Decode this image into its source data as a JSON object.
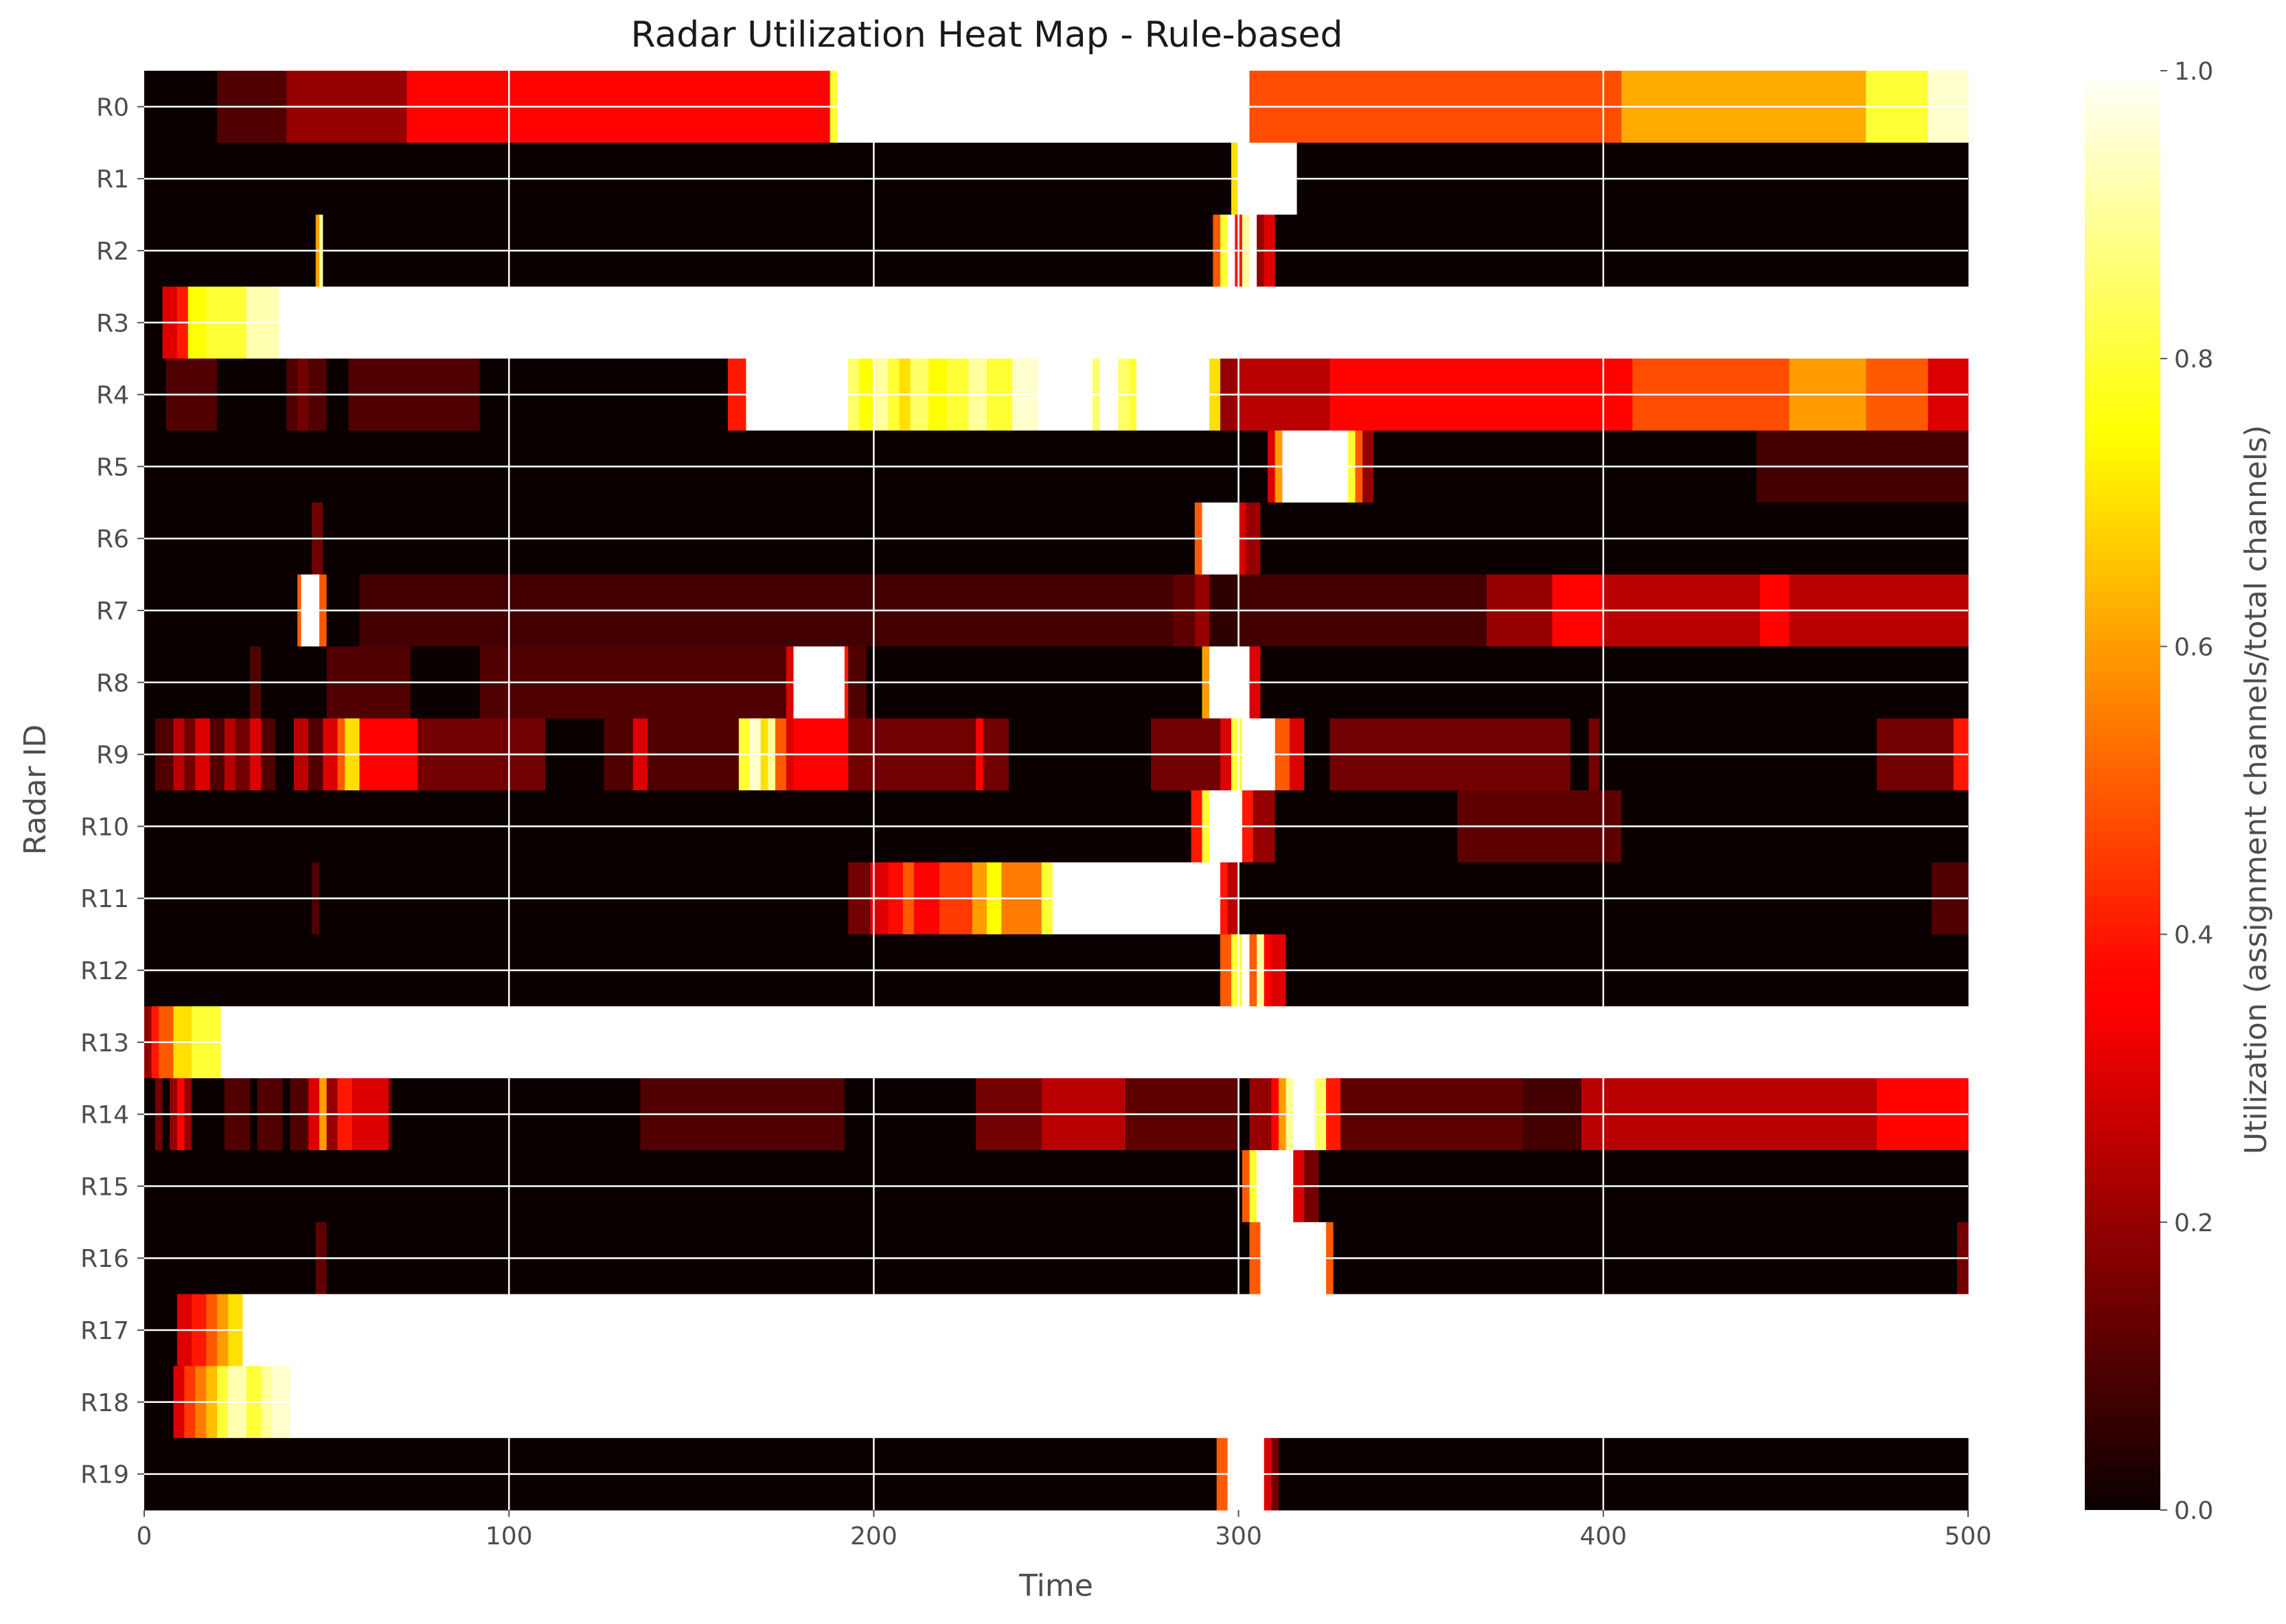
{
  "chart_data": {
    "type": "heatmap",
    "title": "Radar Utilization Heat Map - Rule-based",
    "xlabel": "Time",
    "ylabel": "Radar ID",
    "xlim": [
      0,
      500
    ],
    "x_ticks": [
      "0",
      "100",
      "200",
      "300",
      "400",
      "500"
    ],
    "rows": [
      "R0",
      "R1",
      "R2",
      "R3",
      "R4",
      "R5",
      "R6",
      "R7",
      "R8",
      "R9",
      "R10",
      "R11",
      "R12",
      "R13",
      "R14",
      "R15",
      "R16",
      "R17",
      "R18",
      "R19"
    ],
    "colormap": "hot",
    "colorbar": {
      "label": "Utilization (assignment channels/total channels)",
      "range": [
        0.0,
        1.0
      ],
      "ticks": [
        "0.0",
        "0.2",
        "0.4",
        "0.6",
        "0.8",
        "1.0"
      ]
    },
    "grid": true,
    "segments": [
      [
        [
          0,
          20,
          0.0
        ],
        [
          20,
          39,
          0.1
        ],
        [
          39,
          72,
          0.2
        ],
        [
          72,
          188,
          0.37
        ],
        [
          188,
          190,
          0.8
        ],
        [
          190,
          303,
          1.0
        ],
        [
          303,
          405,
          0.48
        ],
        [
          405,
          472,
          0.62
        ],
        [
          472,
          489,
          0.8
        ],
        [
          489,
          500,
          0.95
        ]
      ],
      [
        [
          0,
          298,
          0.0
        ],
        [
          298,
          300,
          0.7
        ],
        [
          300,
          316,
          1.0
        ],
        [
          316,
          500,
          0.0
        ]
      ],
      [
        [
          0,
          47,
          0.0
        ],
        [
          47,
          48,
          0.6
        ],
        [
          48,
          49,
          0.9
        ],
        [
          49,
          293,
          0.0
        ],
        [
          293,
          295,
          0.5
        ],
        [
          295,
          297,
          0.8
        ],
        [
          297,
          299,
          1.0
        ],
        [
          299,
          301,
          0.4
        ],
        [
          301,
          303,
          0.9
        ],
        [
          303,
          305,
          1.0
        ],
        [
          305,
          307,
          0.2
        ],
        [
          307,
          310,
          0.3
        ],
        [
          310,
          500,
          0.0
        ]
      ],
      [
        [
          0,
          5,
          0.0
        ],
        [
          5,
          9,
          0.3
        ],
        [
          9,
          12,
          0.4
        ],
        [
          12,
          17,
          0.75
        ],
        [
          17,
          28,
          0.8
        ],
        [
          28,
          37,
          0.92
        ],
        [
          37,
          500,
          1.0
        ]
      ],
      [
        [
          0,
          6,
          0.0
        ],
        [
          6,
          20,
          0.1
        ],
        [
          20,
          39,
          0.0
        ],
        [
          39,
          42,
          0.1
        ],
        [
          42,
          45,
          0.15
        ],
        [
          45,
          50,
          0.1
        ],
        [
          50,
          56,
          0.0
        ],
        [
          56,
          92,
          0.1
        ],
        [
          92,
          160,
          0.0
        ],
        [
          160,
          165,
          0.4
        ],
        [
          165,
          193,
          1.0
        ],
        [
          193,
          196,
          0.85
        ],
        [
          196,
          200,
          0.75
        ],
        [
          200,
          204,
          0.9
        ],
        [
          204,
          207,
          0.8
        ],
        [
          207,
          210,
          0.7
        ],
        [
          210,
          215,
          0.85
        ],
        [
          215,
          220,
          0.75
        ],
        [
          220,
          226,
          0.8
        ],
        [
          226,
          231,
          0.9
        ],
        [
          231,
          238,
          0.8
        ],
        [
          238,
          245,
          0.95
        ],
        [
          245,
          260,
          1.0
        ],
        [
          260,
          262,
          0.85
        ],
        [
          262,
          267,
          1.0
        ],
        [
          267,
          270,
          0.85
        ],
        [
          270,
          272,
          0.8
        ],
        [
          272,
          292,
          1.0
        ],
        [
          292,
          295,
          0.7
        ],
        [
          295,
          300,
          0.2
        ],
        [
          300,
          325,
          0.25
        ],
        [
          325,
          408,
          0.37
        ],
        [
          408,
          451,
          0.48
        ],
        [
          451,
          472,
          0.6
        ],
        [
          472,
          489,
          0.5
        ],
        [
          489,
          500,
          0.3
        ]
      ],
      [
        [
          0,
          308,
          0.0
        ],
        [
          308,
          310,
          0.3
        ],
        [
          310,
          312,
          0.6
        ],
        [
          312,
          330,
          1.0
        ],
        [
          330,
          332,
          0.8
        ],
        [
          332,
          334,
          0.5
        ],
        [
          334,
          337,
          0.2
        ],
        [
          337,
          442,
          0.0
        ],
        [
          442,
          500,
          0.08
        ]
      ],
      [
        [
          0,
          46,
          0.0
        ],
        [
          46,
          49,
          0.15
        ],
        [
          49,
          288,
          0.0
        ],
        [
          288,
          290,
          0.5
        ],
        [
          290,
          300,
          1.0
        ],
        [
          300,
          302,
          0.3
        ],
        [
          302,
          306,
          0.2
        ],
        [
          306,
          500,
          0.0
        ]
      ],
      [
        [
          0,
          42,
          0.0
        ],
        [
          42,
          43,
          0.5
        ],
        [
          43,
          48,
          1.0
        ],
        [
          48,
          50,
          0.5
        ],
        [
          50,
          59,
          0.0
        ],
        [
          59,
          282,
          0.08
        ],
        [
          282,
          288,
          0.12
        ],
        [
          288,
          292,
          0.2
        ],
        [
          292,
          300,
          0.05
        ],
        [
          300,
          368,
          0.08
        ],
        [
          368,
          386,
          0.2
        ],
        [
          386,
          400,
          0.37
        ],
        [
          400,
          443,
          0.25
        ],
        [
          443,
          451,
          0.37
        ],
        [
          451,
          500,
          0.25
        ]
      ],
      [
        [
          0,
          29,
          0.0
        ],
        [
          29,
          32,
          0.1
        ],
        [
          32,
          50,
          0.0
        ],
        [
          50,
          73,
          0.1
        ],
        [
          73,
          92,
          0.0
        ],
        [
          92,
          176,
          0.1
        ],
        [
          176,
          178,
          0.3
        ],
        [
          178,
          192,
          1.0
        ],
        [
          192,
          193,
          0.4
        ],
        [
          193,
          198,
          0.1
        ],
        [
          198,
          290,
          0.0
        ],
        [
          290,
          292,
          0.6
        ],
        [
          292,
          303,
          1.0
        ],
        [
          303,
          306,
          0.3
        ],
        [
          306,
          500,
          0.0
        ]
      ],
      [
        [
          0,
          3,
          0.0
        ],
        [
          3,
          8,
          0.1
        ],
        [
          8,
          11,
          0.25
        ],
        [
          11,
          14,
          0.15
        ],
        [
          14,
          18,
          0.3
        ],
        [
          18,
          22,
          0.1
        ],
        [
          22,
          25,
          0.25
        ],
        [
          25,
          29,
          0.15
        ],
        [
          29,
          32,
          0.3
        ],
        [
          32,
          36,
          0.1
        ],
        [
          36,
          41,
          0.0
        ],
        [
          41,
          45,
          0.25
        ],
        [
          45,
          49,
          0.1
        ],
        [
          49,
          53,
          0.3
        ],
        [
          53,
          55,
          0.5
        ],
        [
          55,
          59,
          0.7
        ],
        [
          59,
          75,
          0.35
        ],
        [
          75,
          110,
          0.15
        ],
        [
          110,
          126,
          0.0
        ],
        [
          126,
          134,
          0.1
        ],
        [
          134,
          138,
          0.3
        ],
        [
          138,
          163,
          0.1
        ],
        [
          163,
          166,
          0.8
        ],
        [
          166,
          169,
          0.95
        ],
        [
          169,
          171,
          0.7
        ],
        [
          171,
          173,
          0.9
        ],
        [
          173,
          176,
          0.5
        ],
        [
          176,
          178,
          0.3
        ],
        [
          178,
          193,
          0.35
        ],
        [
          193,
          228,
          0.15
        ],
        [
          228,
          230,
          0.35
        ],
        [
          230,
          237,
          0.15
        ],
        [
          237,
          276,
          0.0
        ],
        [
          276,
          295,
          0.15
        ],
        [
          295,
          298,
          0.3
        ],
        [
          298,
          301,
          0.8
        ],
        [
          301,
          310,
          1.0
        ],
        [
          310,
          314,
          0.5
        ],
        [
          314,
          318,
          0.3
        ],
        [
          318,
          325,
          0.0
        ],
        [
          325,
          391,
          0.15
        ],
        [
          391,
          396,
          0.0
        ],
        [
          396,
          399,
          0.15
        ],
        [
          399,
          475,
          0.0
        ],
        [
          475,
          496,
          0.15
        ],
        [
          496,
          500,
          0.4
        ]
      ],
      [
        [
          0,
          287,
          0.0
        ],
        [
          287,
          290,
          0.4
        ],
        [
          290,
          292,
          0.8
        ],
        [
          292,
          301,
          1.0
        ],
        [
          301,
          304,
          0.4
        ],
        [
          304,
          310,
          0.2
        ],
        [
          310,
          360,
          0.0
        ],
        [
          360,
          405,
          0.12
        ],
        [
          405,
          500,
          0.0
        ]
      ],
      [
        [
          0,
          46,
          0.0
        ],
        [
          46,
          48,
          0.1
        ],
        [
          48,
          193,
          0.0
        ],
        [
          193,
          199,
          0.15
        ],
        [
          199,
          204,
          0.3
        ],
        [
          204,
          208,
          0.38
        ],
        [
          208,
          211,
          0.5
        ],
        [
          211,
          218,
          0.37
        ],
        [
          218,
          227,
          0.45
        ],
        [
          227,
          231,
          0.6
        ],
        [
          231,
          235,
          0.75
        ],
        [
          235,
          246,
          0.55
        ],
        [
          246,
          249,
          0.8
        ],
        [
          249,
          295,
          1.0
        ],
        [
          295,
          297,
          0.4
        ],
        [
          297,
          300,
          0.25
        ],
        [
          300,
          490,
          0.0
        ],
        [
          490,
          500,
          0.1
        ]
      ],
      [
        [
          0,
          295,
          0.0
        ],
        [
          295,
          298,
          0.5
        ],
        [
          298,
          301,
          0.8
        ],
        [
          301,
          303,
          1.0
        ],
        [
          303,
          305,
          0.5
        ],
        [
          305,
          307,
          0.9
        ],
        [
          307,
          309,
          0.35
        ],
        [
          309,
          313,
          0.3
        ],
        [
          313,
          500,
          0.0
        ]
      ],
      [
        [
          0,
          2,
          0.2
        ],
        [
          2,
          4,
          0.4
        ],
        [
          4,
          8,
          0.5
        ],
        [
          8,
          13,
          0.7
        ],
        [
          13,
          21,
          0.8
        ],
        [
          21,
          500,
          1.0
        ]
      ],
      [
        [
          0,
          3,
          0.0
        ],
        [
          3,
          5,
          0.15
        ],
        [
          5,
          7,
          0.0
        ],
        [
          7,
          9,
          0.2
        ],
        [
          9,
          11,
          0.35
        ],
        [
          11,
          13,
          0.2
        ],
        [
          13,
          22,
          0.0
        ],
        [
          22,
          29,
          0.1
        ],
        [
          29,
          31,
          0.0
        ],
        [
          31,
          38,
          0.1
        ],
        [
          38,
          40,
          0.0
        ],
        [
          40,
          45,
          0.1
        ],
        [
          45,
          48,
          0.3
        ],
        [
          48,
          50,
          0.6
        ],
        [
          50,
          53,
          0.2
        ],
        [
          53,
          57,
          0.4
        ],
        [
          57,
          67,
          0.3
        ],
        [
          67,
          68,
          0.1
        ],
        [
          68,
          136,
          0.0
        ],
        [
          136,
          192,
          0.1
        ],
        [
          192,
          228,
          0.0
        ],
        [
          228,
          246,
          0.15
        ],
        [
          246,
          269,
          0.25
        ],
        [
          269,
          300,
          0.12
        ],
        [
          300,
          303,
          0.0
        ],
        [
          303,
          309,
          0.2
        ],
        [
          309,
          311,
          0.35
        ],
        [
          311,
          313,
          0.6
        ],
        [
          313,
          315,
          0.9
        ],
        [
          315,
          321,
          1.0
        ],
        [
          321,
          324,
          0.85
        ],
        [
          324,
          328,
          0.4
        ],
        [
          328,
          378,
          0.12
        ],
        [
          378,
          394,
          0.08
        ],
        [
          394,
          475,
          0.25
        ],
        [
          475,
          500,
          0.37
        ]
      ],
      [
        [
          0,
          301,
          0.0
        ],
        [
          301,
          303,
          0.5
        ],
        [
          303,
          305,
          0.8
        ],
        [
          305,
          315,
          1.0
        ],
        [
          315,
          318,
          0.3
        ],
        [
          318,
          322,
          0.15
        ],
        [
          322,
          500,
          0.0
        ]
      ],
      [
        [
          0,
          47,
          0.0
        ],
        [
          47,
          50,
          0.12
        ],
        [
          50,
          303,
          0.0
        ],
        [
          303,
          306,
          0.5
        ],
        [
          306,
          324,
          1.0
        ],
        [
          324,
          326,
          0.5
        ],
        [
          326,
          497,
          0.0
        ],
        [
          497,
          500,
          0.15
        ]
      ],
      [
        [
          0,
          9,
          0.0
        ],
        [
          9,
          13,
          0.3
        ],
        [
          13,
          17,
          0.4
        ],
        [
          17,
          20,
          0.5
        ],
        [
          20,
          23,
          0.6
        ],
        [
          23,
          27,
          0.7
        ],
        [
          27,
          500,
          1.0
        ]
      ],
      [
        [
          0,
          8,
          0.0
        ],
        [
          8,
          11,
          0.3
        ],
        [
          11,
          14,
          0.45
        ],
        [
          14,
          17,
          0.55
        ],
        [
          17,
          20,
          0.65
        ],
        [
          20,
          23,
          0.8
        ],
        [
          23,
          28,
          0.92
        ],
        [
          28,
          32,
          0.8
        ],
        [
          32,
          35,
          0.9
        ],
        [
          35,
          40,
          0.95
        ],
        [
          40,
          500,
          1.0
        ]
      ],
      [
        [
          0,
          294,
          0.0
        ],
        [
          294,
          297,
          0.5
        ],
        [
          297,
          307,
          1.0
        ],
        [
          307,
          309,
          0.3
        ],
        [
          309,
          311,
          0.15
        ],
        [
          311,
          500,
          0.0
        ]
      ]
    ]
  }
}
